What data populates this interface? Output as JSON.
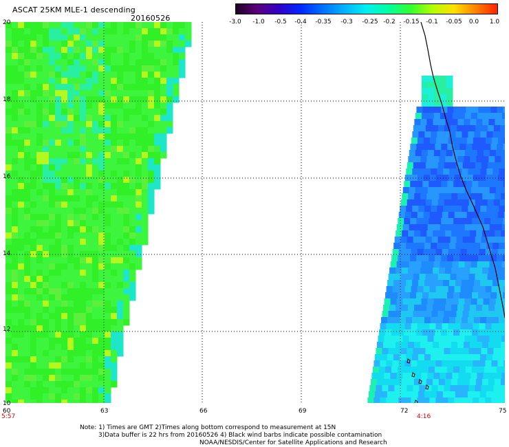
{
  "header": {
    "title": "ASCAT 25KM MLE-1 descending",
    "date": "20160526"
  },
  "colorbar": {
    "labels": [
      "-3.0",
      "-1.0",
      "-0.5",
      "-0.4",
      "-0.35",
      "-0.3",
      "-0.25",
      "-0.2",
      "-0.15",
      "-0.1",
      "-0.05",
      "0.0",
      "1.0"
    ],
    "colors": [
      "#200020",
      "#5a007a",
      "#3200c8",
      "#0028ff",
      "#0070ff",
      "#00b4ff",
      "#00f0f0",
      "#00ffa0",
      "#30ff30",
      "#b0ff00",
      "#ffe000",
      "#ff8000",
      "#ff1e00"
    ]
  },
  "map": {
    "x_ticks": [
      "60",
      "63",
      "66",
      "69",
      "72",
      "75"
    ],
    "y_ticks": [
      "20",
      "18",
      "16",
      "14",
      "12",
      "10"
    ],
    "time_left": "5:57",
    "time_right": "4:16"
  },
  "footer": {
    "line1": "Note: 1) Times are GMT 2)Times along bottom correspond to measurement at 15N",
    "line2": "3)Data buffer is 22 hrs from 20160526 4) Black wind barbs indicate possible contamination",
    "line3": "NOAA/NESDIS/Center for Satellite Applications and Research"
  },
  "colors": {
    "swath_green": "#33f533",
    "swath_cyan": "#1ef0d8",
    "swath_blue": "#1e78ff",
    "coast": "#000000"
  }
}
